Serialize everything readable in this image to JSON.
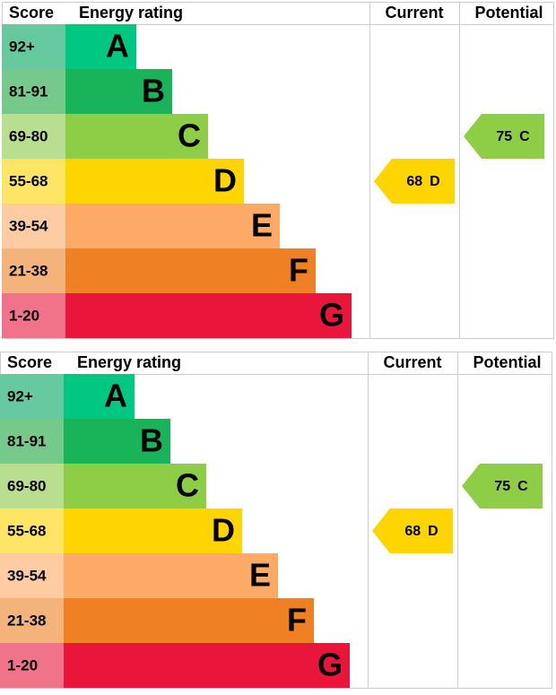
{
  "charts": [
    {
      "headers": {
        "score": "Score",
        "rating": "Energy rating",
        "current": "Current",
        "potential": "Potential"
      },
      "bands": [
        {
          "score": "92+",
          "letter": "A",
          "color": "#00c781",
          "score_color": "#66c9a0"
        },
        {
          "score": "81-91",
          "letter": "B",
          "color": "#19b459",
          "score_color": "#74c98b"
        },
        {
          "score": "69-80",
          "letter": "C",
          "color": "#8dce46",
          "score_color": "#b9de8f"
        },
        {
          "score": "55-68",
          "letter": "D",
          "color": "#ffd500",
          "score_color": "#ffe566"
        },
        {
          "score": "39-54",
          "letter": "E",
          "color": "#fcaa65",
          "score_color": "#fdcca3"
        },
        {
          "score": "21-38",
          "letter": "F",
          "color": "#ef8023",
          "score_color": "#f4b37b"
        },
        {
          "score": "1-20",
          "letter": "G",
          "color": "#e9153b",
          "score_color": "#f07389"
        }
      ],
      "current": {
        "value": 68,
        "letter": "D"
      },
      "potential": {
        "value": 75,
        "letter": "C"
      }
    },
    {
      "headers": {
        "score": "Score",
        "rating": "Energy rating",
        "current": "Current",
        "potential": "Potential"
      },
      "bands": [
        {
          "score": "92+",
          "letter": "A",
          "color": "#00c781",
          "score_color": "#66c9a0"
        },
        {
          "score": "81-91",
          "letter": "B",
          "color": "#19b459",
          "score_color": "#74c98b"
        },
        {
          "score": "69-80",
          "letter": "C",
          "color": "#8dce46",
          "score_color": "#b9de8f"
        },
        {
          "score": "55-68",
          "letter": "D",
          "color": "#ffd500",
          "score_color": "#ffe566"
        },
        {
          "score": "39-54",
          "letter": "E",
          "color": "#fcaa65",
          "score_color": "#fdcca3"
        },
        {
          "score": "21-38",
          "letter": "F",
          "color": "#ef8023",
          "score_color": "#f4b37b"
        },
        {
          "score": "1-20",
          "letter": "G",
          "color": "#e9153b",
          "score_color": "#f07389"
        }
      ],
      "current": {
        "value": 68,
        "letter": "D"
      },
      "potential": {
        "value": 75,
        "letter": "C"
      }
    }
  ]
}
